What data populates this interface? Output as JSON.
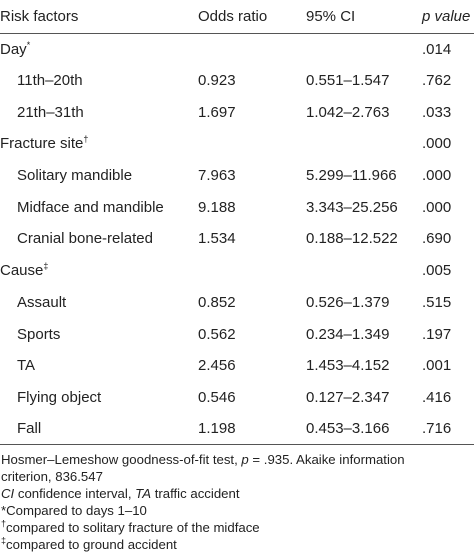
{
  "headers": {
    "factor": "Risk factors",
    "odds": "Odds ratio",
    "ci": "95% CI",
    "p": "p value"
  },
  "rows": [
    {
      "factor": "Day",
      "mark": "*",
      "odds": "",
      "ci": "",
      "p": ".014",
      "indent": false
    },
    {
      "factor": "11th–20th",
      "mark": "",
      "odds": "0.923",
      "ci": "0.551–1.547",
      "p": ".762",
      "indent": true
    },
    {
      "factor": "21th–31th",
      "mark": "",
      "odds": "1.697",
      "ci": "1.042–2.763",
      "p": ".033",
      "indent": true
    },
    {
      "factor": "Fracture site",
      "mark": "†",
      "odds": "",
      "ci": "",
      "p": ".000",
      "indent": false
    },
    {
      "factor": "Solitary mandible",
      "mark": "",
      "odds": "7.963",
      "ci": "5.299–11.966",
      "p": ".000",
      "indent": true
    },
    {
      "factor": "Midface and mandible",
      "mark": "",
      "odds": "9.188",
      "ci": "3.343–25.256",
      "p": ".000",
      "indent": true
    },
    {
      "factor": "Cranial bone-related",
      "mark": "",
      "odds": "1.534",
      "ci": "0.188–12.522",
      "p": ".690",
      "indent": true
    },
    {
      "factor": "Cause",
      "mark": "‡",
      "odds": "",
      "ci": "",
      "p": ".005",
      "indent": false
    },
    {
      "factor": "Assault",
      "mark": "",
      "odds": "0.852",
      "ci": "0.526–1.379",
      "p": ".515",
      "indent": true
    },
    {
      "factor": "Sports",
      "mark": "",
      "odds": "0.562",
      "ci": "0.234–1.349",
      "p": ".197",
      "indent": true
    },
    {
      "factor": "TA",
      "mark": "",
      "odds": "2.456",
      "ci": "1.453–4.152",
      "p": ".001",
      "indent": true
    },
    {
      "factor": "Flying object",
      "mark": "",
      "odds": "0.546",
      "ci": "0.127–2.347",
      "p": ".416",
      "indent": true
    },
    {
      "factor": "Fall",
      "mark": "",
      "odds": "1.198",
      "ci": "0.453–3.166",
      "p": ".716",
      "indent": true
    }
  ],
  "notes": {
    "fit_prefix": "Hosmer–Lemeshow goodness-of-fit test, ",
    "fit_p": "p",
    "fit_rest": " = .935. Akaike information",
    "fit_line2": "criterion, 836.547",
    "abbr_ci": "CI",
    "abbr_ci_text": " confidence interval, ",
    "abbr_ta": "TA",
    "abbr_ta_text": " traffic accident",
    "star": "*Compared to days 1–10",
    "dagger_mark": "†",
    "dagger_text": "compared to solitary fracture of the midface",
    "ddagger_mark": "‡",
    "ddagger_text": "compared to ground accident"
  }
}
